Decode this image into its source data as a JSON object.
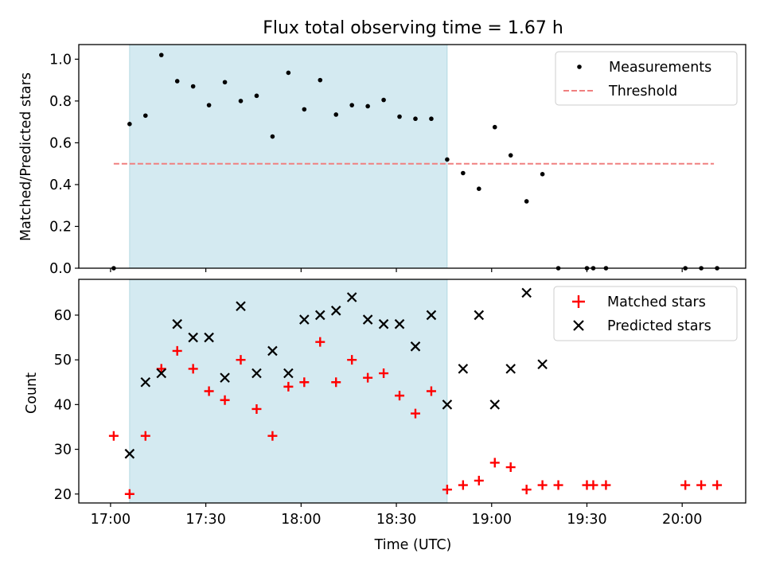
{
  "chart_data": [
    {
      "type": "scatter",
      "title": "Flux total observing time = 1.67 h",
      "xlabel": "",
      "ylabel": "Matched/Predicted stars",
      "xlim": [
        -10,
        200
      ],
      "ylim": [
        0,
        1.07
      ],
      "x_ticks": [
        "17:00",
        "17:30",
        "18:00",
        "18:30",
        "19:00",
        "19:30",
        "20:00"
      ],
      "x_tick_minutes": [
        0,
        30,
        60,
        90,
        120,
        150,
        180
      ],
      "y_ticks": [
        "0.0",
        "0.2",
        "0.4",
        "0.6",
        "0.8",
        "1.0"
      ],
      "y_tick_values": [
        0,
        0.2,
        0.4,
        0.6,
        0.8,
        1.0
      ],
      "shaded_span_minutes": [
        6,
        106
      ],
      "shade_color": "#d4eaf1",
      "threshold": {
        "name": "Threshold",
        "y": 0.5,
        "x_range": [
          1,
          190
        ],
        "color": "#f08080"
      },
      "legend_location": "upper right",
      "series": [
        {
          "name": "Measurements",
          "marker": "dot",
          "color": "#000000",
          "x": [
            1,
            6,
            11,
            16,
            21,
            26,
            31,
            36,
            41,
            46,
            51,
            56,
            61,
            66,
            71,
            76,
            81,
            86,
            91,
            96,
            101,
            106,
            111,
            116,
            121,
            126,
            131,
            136,
            141,
            150,
            152,
            156,
            181,
            186,
            191
          ],
          "y": [
            0.0,
            0.69,
            0.73,
            1.02,
            0.895,
            0.87,
            0.78,
            0.89,
            0.8,
            0.825,
            0.63,
            0.935,
            0.76,
            0.9,
            0.735,
            0.78,
            0.775,
            0.805,
            0.725,
            0.715,
            0.715,
            0.52,
            0.455,
            0.38,
            0.675,
            0.54,
            0.32,
            0.45,
            0.0,
            0.0,
            0.0,
            0.0,
            0.0,
            0.0,
            0.0
          ]
        }
      ]
    },
    {
      "type": "scatter",
      "title": "",
      "xlabel": "Time (UTC)",
      "ylabel": "Count",
      "xlim": [
        -10,
        200
      ],
      "ylim": [
        18,
        68
      ],
      "x_ticks": [
        "17:00",
        "17:30",
        "18:00",
        "18:30",
        "19:00",
        "19:30",
        "20:00"
      ],
      "x_tick_minutes": [
        0,
        30,
        60,
        90,
        120,
        150,
        180
      ],
      "y_ticks": [
        "20",
        "30",
        "40",
        "50",
        "60"
      ],
      "y_tick_values": [
        20,
        30,
        40,
        50,
        60
      ],
      "shaded_span_minutes": [
        6,
        106
      ],
      "legend_location": "upper right",
      "series": [
        {
          "name": "Matched stars",
          "marker": "plus",
          "color": "#ff0000",
          "x": [
            1,
            6,
            11,
            16,
            21,
            26,
            31,
            36,
            41,
            46,
            51,
            56,
            61,
            66,
            71,
            76,
            81,
            86,
            91,
            96,
            101,
            106,
            111,
            116,
            121,
            126,
            131,
            136,
            141,
            150,
            152,
            156,
            181,
            186,
            191
          ],
          "y": [
            33,
            20,
            33,
            48,
            52,
            48,
            43,
            41,
            50,
            39,
            33,
            44,
            45,
            54,
            45,
            50,
            46,
            47,
            42,
            38,
            43,
            21,
            22,
            23,
            27,
            26,
            21,
            22,
            22,
            22,
            22,
            22,
            22,
            22,
            22
          ]
        },
        {
          "name": "Predicted stars",
          "marker": "x",
          "color": "#000000",
          "x": [
            6,
            11,
            16,
            21,
            26,
            31,
            36,
            41,
            46,
            51,
            56,
            61,
            66,
            71,
            76,
            81,
            86,
            91,
            96,
            101,
            106,
            111,
            116,
            121,
            126,
            131,
            136
          ],
          "y": [
            29,
            45,
            47,
            58,
            55,
            55,
            46,
            62,
            47,
            52,
            47,
            59,
            60,
            61,
            64,
            59,
            58,
            58,
            53,
            60,
            40,
            48,
            60,
            40,
            48,
            65,
            49
          ]
        }
      ]
    }
  ]
}
